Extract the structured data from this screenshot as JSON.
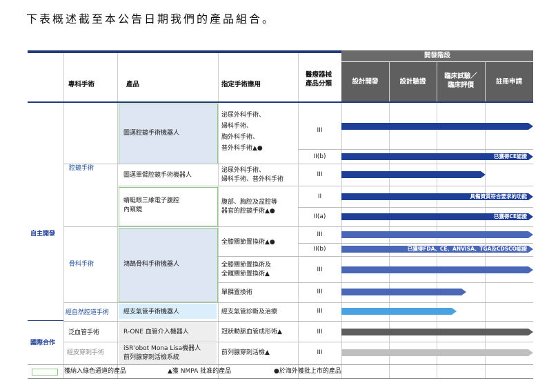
{
  "title": "下表概述截至本公告日期我們的產品組合。",
  "header": {
    "phase_group": "開發階段",
    "col_specialty": "專科手術",
    "col_product": "產品",
    "col_application": "指定手術應用",
    "col_class_l1": "醫療器械",
    "col_class_l2": "產品分類",
    "phase_1": "設計開發",
    "phase_2": "設計驗證",
    "phase_3_l1": "臨床試驗／",
    "phase_3_l2": "臨床評價",
    "phase_4": "註冊申請"
  },
  "groups": {
    "self_developed": "自主開發",
    "international": "國際合作"
  },
  "specialties": {
    "laparoscopic": "腔鏡手術",
    "orthopedic": "骨科手術",
    "natural_orifice": "經自然腔道手術",
    "vascular": "泛血管手術",
    "percutaneous": "經皮穿刺手術"
  },
  "products": {
    "p1": "圖邁腔鏡手術機器人",
    "p2": "圖邁單臂腔鏡手術機器人",
    "p3_l1": "蜻蜓眼三維電子腹腔",
    "p3_l2": "內窺鏡",
    "p4": "鴻鵠骨科手術機器人",
    "p5": "經支氣管手術機器人",
    "p6": "R-ONE 血管介入機器人",
    "p7_l1": "iSR'obot Mona Lisa機器人",
    "p7_l2": "前列腺穿刺活檢系統"
  },
  "applications": {
    "a1_l1": "泌尿外科手術、",
    "a1_l2": "婦科手術、",
    "a1_l3": "胸外科手術、",
    "a1_l4": "普外科手術▲●",
    "a2_l1": "泌尿外科手術、",
    "a2_l2": "婦科手術、普外科手術",
    "a3_l1": "腹部、胸腔及盆腔等",
    "a3_l2": "器官的腔鏡手術▲●",
    "a4": "全膝關節置換術▲●",
    "a5_l1": "全膝關節置換術及",
    "a5_l2": "全髖關節置換術▲",
    "a6": "單髁置換術",
    "a7": "經支氣管診斷及治療",
    "a8": "冠狀動脈血管成形術▲",
    "a9": "前列腺穿刺活檢▲"
  },
  "classes": {
    "r1": "III",
    "r2": "II(b)",
    "r3": "III",
    "r4": "II",
    "r5": "II(a)",
    "r6": "III",
    "r7": "II(b)",
    "r8": "III",
    "r9": "III",
    "r10": "III",
    "r11": "III",
    "r12": "III"
  },
  "progress": [
    {
      "row": 1,
      "level": 4,
      "color": "#1f3f96",
      "note": ""
    },
    {
      "row": 2,
      "level": 4,
      "color": "#1f3f96",
      "note": "已獲得CE認證"
    },
    {
      "row": 3,
      "level": 3,
      "color": "#1f3f96",
      "note": ""
    },
    {
      "row": 4,
      "level": 4,
      "color": "#1f3f96",
      "note": "具備資質符合要求的功能"
    },
    {
      "row": 5,
      "level": 4,
      "color": "#1f3f96",
      "note": "已獲得CE認證"
    },
    {
      "row": 6,
      "level": 4,
      "color": "#4a66b7",
      "note": ""
    },
    {
      "row": 7,
      "level": 4,
      "color": "#4a66b7",
      "note": "已獲得FDA、CE、ANVISA、TGA及CDSCO認證"
    },
    {
      "row": 8,
      "level": 4,
      "color": "#4a66b7",
      "note": ""
    },
    {
      "row": 9,
      "level": 2.6,
      "color": "#4a66b7",
      "note": ""
    },
    {
      "row": 10,
      "level": 2.4,
      "color": "#4aa3e0",
      "note": ""
    },
    {
      "row": 11,
      "level": 4,
      "color": "#5d5d5d",
      "note": ""
    },
    {
      "row": 12,
      "level": 4,
      "color": "#bfbfbf",
      "note": ""
    }
  ],
  "legend": {
    "green": "獲納入綠色通道的產品",
    "nmpa": "▲獲 NMPA 批准的產品",
    "overseas": "●於海外獲批上市的產品"
  }
}
